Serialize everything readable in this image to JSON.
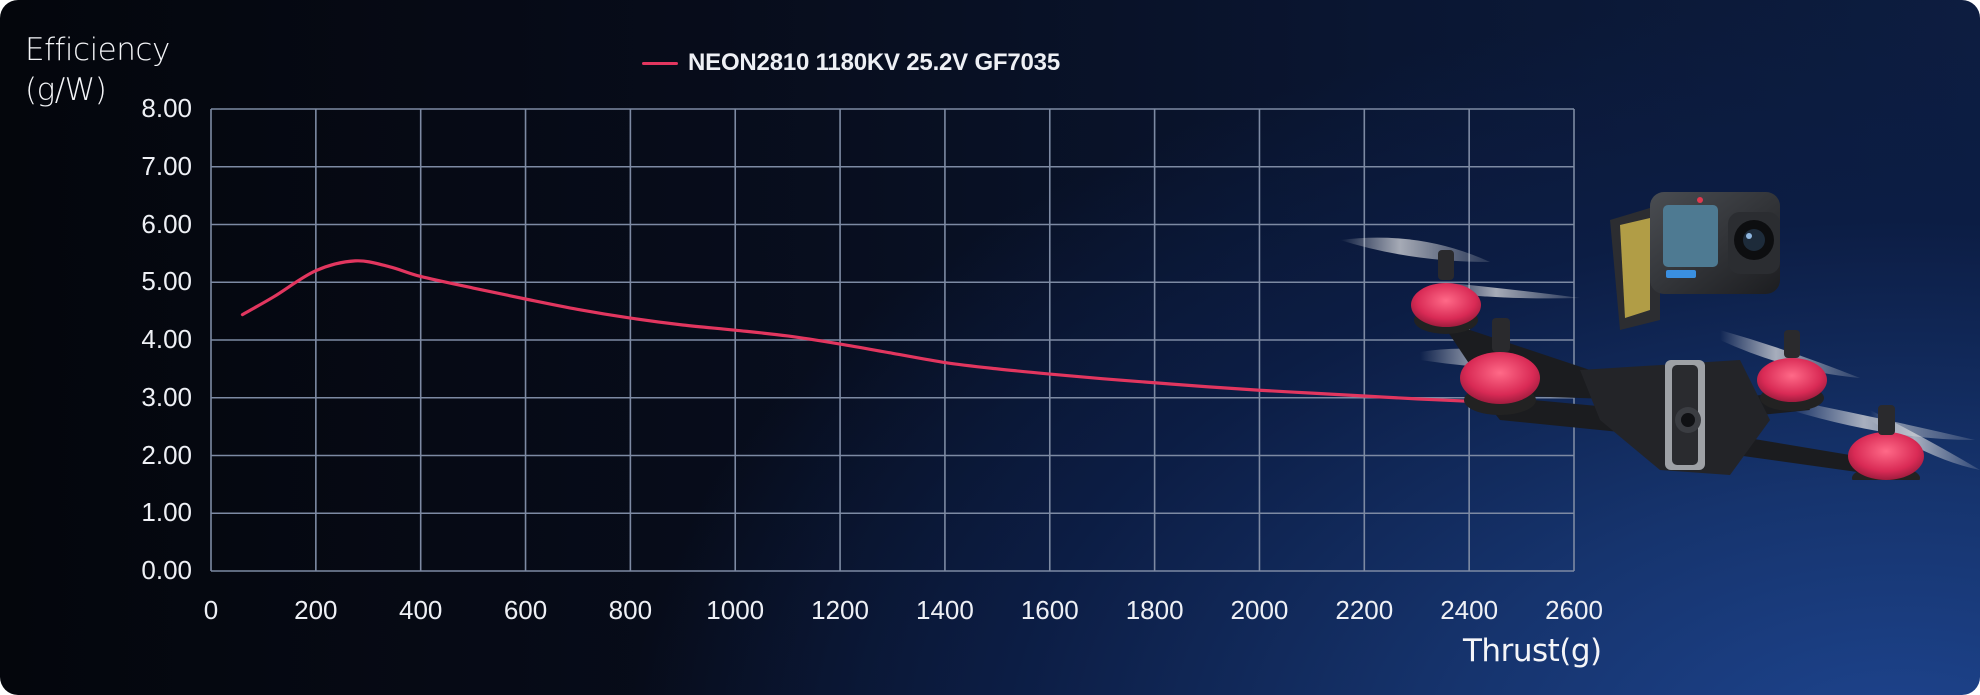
{
  "chart": {
    "y_axis_title_line1": "Efficiency",
    "y_axis_title_line2": "(g/W)",
    "x_axis_title": "Thrust(g)",
    "legend": [
      {
        "label": "NEON2810 1180KV 25.2V GF7035",
        "color": "#e2365f"
      }
    ],
    "colors": {
      "series": "#e2365f",
      "grid": "#7d8aa3",
      "text": "#eef0f5"
    },
    "product_image": "fpv-drone-with-action-camera"
  },
  "chart_data": {
    "type": "line",
    "title": "",
    "xlabel": "Thrust(g)",
    "ylabel": "Efficiency (g/W)",
    "xlim": [
      0,
      2600
    ],
    "ylim": [
      0,
      8
    ],
    "x_ticks": [
      0,
      200,
      400,
      600,
      800,
      1000,
      1200,
      1400,
      1600,
      1800,
      2000,
      2200,
      2400,
      2600
    ],
    "x_tick_labels": [
      "0",
      "200",
      "400",
      "600",
      "800",
      "1000",
      "1200",
      "1400",
      "1600",
      "1800",
      "2000",
      "2200",
      "2400",
      "2600"
    ],
    "y_ticks": [
      0,
      1,
      2,
      3,
      4,
      5,
      6,
      7,
      8
    ],
    "y_tick_labels": [
      "0.00",
      "1.00",
      "2.00",
      "3.00",
      "4.00",
      "5.00",
      "6.00",
      "7.00",
      "8.00"
    ],
    "grid": true,
    "legend_position": "top",
    "series": [
      {
        "name": "NEON2810 1180KV 25.2V GF7035",
        "x": [
          60,
          120,
          200,
          275,
          340,
          400,
          500,
          600,
          700,
          800,
          900,
          1000,
          1100,
          1200,
          1300,
          1400,
          1500,
          1600,
          1700,
          1800,
          1900,
          2000,
          2100,
          2200,
          2300,
          2400,
          2495
        ],
        "values": [
          4.44,
          4.75,
          5.2,
          5.37,
          5.27,
          5.1,
          4.9,
          4.71,
          4.53,
          4.38,
          4.26,
          4.17,
          4.07,
          3.93,
          3.77,
          3.61,
          3.5,
          3.41,
          3.33,
          3.26,
          3.19,
          3.13,
          3.08,
          3.03,
          2.98,
          2.94,
          2.89
        ]
      }
    ]
  }
}
